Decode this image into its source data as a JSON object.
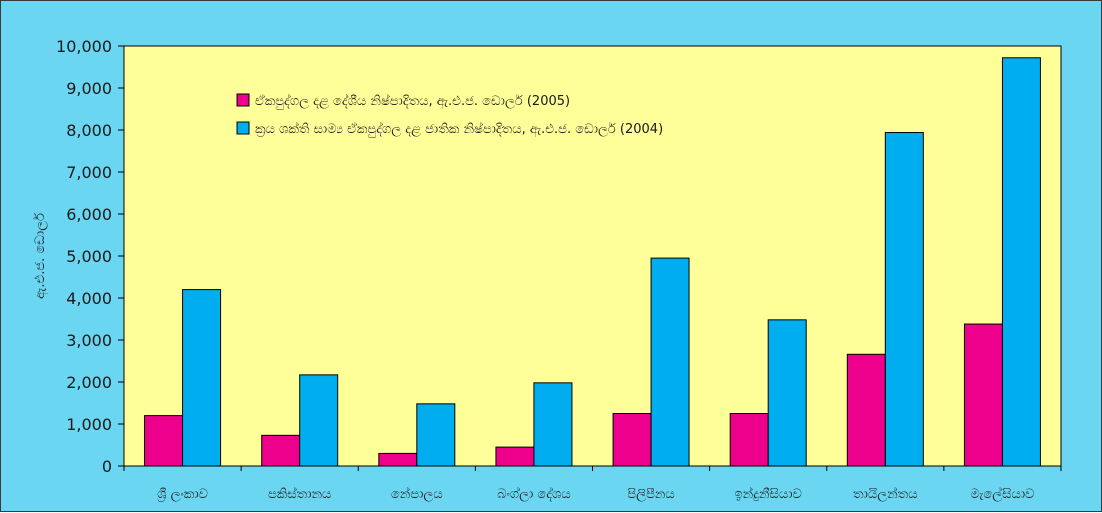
{
  "colors": {
    "outer_background": "#6ad6f1",
    "plot_background": "#ffff99",
    "gdp_series": "#ec008c",
    "ppp_series": "#00aeef",
    "frame_border": "#000000"
  },
  "chart_data": {
    "type": "bar",
    "title": "",
    "xlabel": "",
    "ylabel": "ඇ.එ.ජ. ඩොලර්",
    "ylim": [
      0,
      10000
    ],
    "yticks": [
      "0",
      "1,000",
      "2,000",
      "3,000",
      "4,000",
      "5,000",
      "6,000",
      "7,000",
      "8,000",
      "9,000",
      "10,000"
    ],
    "ytick_values": [
      0,
      1000,
      2000,
      3000,
      4000,
      5000,
      6000,
      7000,
      8000,
      9000,
      10000
    ],
    "grid": false,
    "legend_position": "top-left",
    "categories": [
      "ශ්‍රී ලංකාව",
      "පකිස්තානය",
      "නේපාලය",
      "බංග්ලා දේශය",
      "පිලිපීනය",
      "ඉන්දුනීසියාව",
      "තායිලන්තය",
      "මැලේසියාව"
    ],
    "series": [
      {
        "name": "ඒකපුද්ගල දළ දේශීය නිෂ්පාදිතය, ඇ.එ.ජ. ඩොලර් (2005)",
        "values": [
          1200,
          730,
          300,
          450,
          1250,
          1250,
          2660,
          3380
        ]
      },
      {
        "name": "ක්‍රය ශක්ති සාම්‍ය ඒකපුද්ගල දළ ජාතික නිෂ්පාදිතය, ඇ.එ.ජ. ඩොලර් (2004)",
        "values": [
          4200,
          2170,
          1480,
          1980,
          4950,
          3480,
          7940,
          9720
        ]
      }
    ]
  }
}
